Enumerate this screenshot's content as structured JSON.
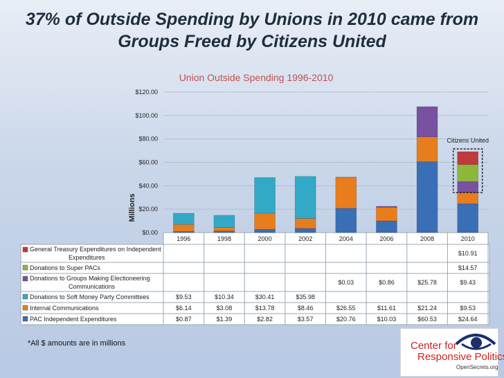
{
  "slide_title": {
    "line1": "37% of Outside Spending by Unions in 2010 came from",
    "line2": "Groups Freed by Citizens United"
  },
  "footnote": "*All $ amounts are in millions",
  "logo": {
    "line1": "Center for",
    "line2": "Responsive Politics",
    "line3": "OpenSecrets.org"
  },
  "colors": {
    "title_red": "#c0504d",
    "pac": "#3a6fb5",
    "internal": "#e87d1e",
    "soft_money": "#32a9c6",
    "electioneering": "#7851a1",
    "super_pac": "#8db63c",
    "treasury": "#c0393b"
  },
  "chart_data": {
    "type": "bar",
    "stacked": true,
    "title": "Union Outside Spending 1996-2010",
    "ylabel": "Millions",
    "ylim": [
      0,
      120
    ],
    "yticks": [
      0,
      20,
      40,
      60,
      80,
      100,
      120
    ],
    "ytick_labels": [
      "$0.00",
      "$20.00",
      "$40.00",
      "$60.00",
      "$80.00",
      "$100.00",
      "$120.00"
    ],
    "categories": [
      "1996",
      "1998",
      "2000",
      "2002",
      "2004",
      "2006",
      "2008",
      "2010"
    ],
    "annotation": "Citizens United",
    "series": [
      {
        "name": "PAC Independent Expenditures",
        "color_key": "pac",
        "values": [
          0.87,
          1.39,
          2.82,
          3.57,
          20.76,
          10.03,
          60.53,
          24.64
        ],
        "labels": [
          "$0.87",
          "$1.39",
          "$2.82",
          "$3.57",
          "$20.76",
          "$10.03",
          "$60.53",
          "$24.64"
        ]
      },
      {
        "name": "Internal Communications",
        "color_key": "internal",
        "values": [
          6.14,
          3.08,
          13.78,
          8.46,
          26.55,
          11.61,
          21.24,
          9.53
        ],
        "labels": [
          "$6.14",
          "$3.08",
          "$13.78",
          "$8.46",
          "$26.55",
          "$11.61",
          "$21.24",
          "$9.53"
        ]
      },
      {
        "name": "Donations to Soft Money Party Committees",
        "color_key": "soft_money",
        "values": [
          9.53,
          10.34,
          30.41,
          35.98,
          null,
          null,
          null,
          null
        ],
        "labels": [
          "$9.53",
          "$10.34",
          "$30.41",
          "$35.98",
          "",
          "",
          "",
          ""
        ]
      },
      {
        "name": "Donations to Groups Making Electioneering Communications",
        "color_key": "electioneering",
        "name_lines": [
          "Donations to Groups Making Electioneering",
          "Communications"
        ],
        "values": [
          null,
          null,
          null,
          null,
          0.03,
          0.86,
          25.78,
          9.43
        ],
        "labels": [
          "",
          "",
          "",
          "",
          "$0.03",
          "$0.86",
          "$25.78",
          "$9.43"
        ]
      },
      {
        "name": "Donations to Super PACs",
        "color_key": "super_pac",
        "values": [
          null,
          null,
          null,
          null,
          null,
          null,
          null,
          14.57
        ],
        "labels": [
          "",
          "",
          "",
          "",
          "",
          "",
          "",
          "$14.57"
        ]
      },
      {
        "name": "General Treasury Expenditures on Independent Expenditures",
        "color_key": "treasury",
        "name_lines": [
          "General Treasury Expenditures on Independent",
          "Expenditures"
        ],
        "values": [
          null,
          null,
          null,
          null,
          null,
          null,
          null,
          10.91
        ],
        "labels": [
          "",
          "",
          "",
          "",
          "",
          "",
          "",
          "$10.91"
        ]
      }
    ]
  }
}
